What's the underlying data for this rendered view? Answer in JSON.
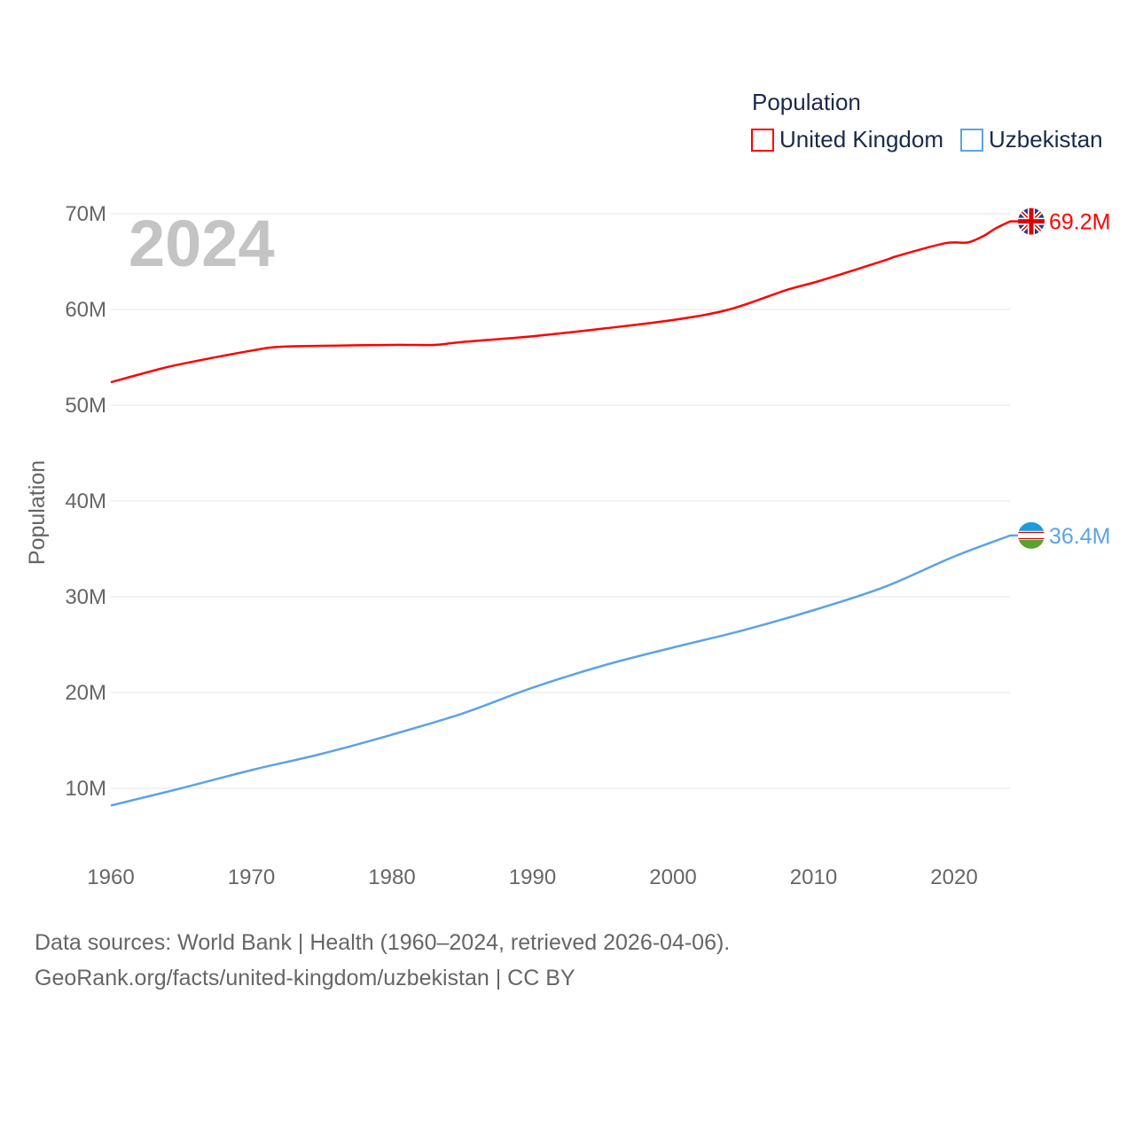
{
  "chart_data": {
    "type": "line",
    "title": "Population",
    "year_label": "2024",
    "ylabel": "Population",
    "xlabel": "",
    "xlim": [
      1960,
      2024
    ],
    "ylim": [
      0,
      70000000
    ],
    "x_ticks": [
      1960,
      1970,
      1980,
      1990,
      2000,
      2010,
      2020
    ],
    "x_tick_labels": [
      "1960",
      "1970",
      "1980",
      "1990",
      "2000",
      "2010",
      "2020"
    ],
    "y_ticks": [
      10000000,
      20000000,
      30000000,
      40000000,
      50000000,
      60000000,
      70000000
    ],
    "y_tick_labels": [
      "10M",
      "20M",
      "30M",
      "40M",
      "50M",
      "60M",
      "70M"
    ],
    "grid": true,
    "legend_position": "top-right",
    "series": [
      {
        "name": "United Kingdom",
        "color": "#ff0000",
        "end_label": "69.2M",
        "flag": "united-kingdom-flag",
        "x": [
          1960,
          1963,
          1965,
          1970,
          1972,
          1975,
          1980,
          1983,
          1985,
          1990,
          1995,
          2000,
          2004,
          2008,
          2010,
          2012,
          2015,
          2016,
          2019,
          2020,
          2021,
          2022,
          2023,
          2024
        ],
        "values": [
          52.4,
          53.6,
          54.3,
          55.7,
          56.1,
          56.2,
          56.3,
          56.3,
          56.6,
          57.2,
          58.0,
          58.9,
          60.0,
          62.0,
          62.8,
          63.7,
          65.1,
          65.6,
          66.8,
          67.0,
          67.0,
          67.6,
          68.5,
          69.2
        ]
      },
      {
        "name": "Uzbekistan",
        "color": "#5ba3e8",
        "end_label": "36.4M",
        "flag": "uzbekistan-flag",
        "x": [
          1960,
          1965,
          1970,
          1975,
          1980,
          1985,
          1990,
          1995,
          2000,
          2005,
          2010,
          2015,
          2020,
          2024
        ],
        "values": [
          8.2,
          10.0,
          11.9,
          13.6,
          15.6,
          17.8,
          20.5,
          22.8,
          24.7,
          26.5,
          28.6,
          31.0,
          34.2,
          36.4
        ]
      }
    ]
  },
  "footer": {
    "line1": "Data sources: World Bank | Health (1960–2024, retrieved 2026-04-06).",
    "line2": "GeoRank.org/facts/united-kingdom/uzbekistan | CC BY"
  }
}
